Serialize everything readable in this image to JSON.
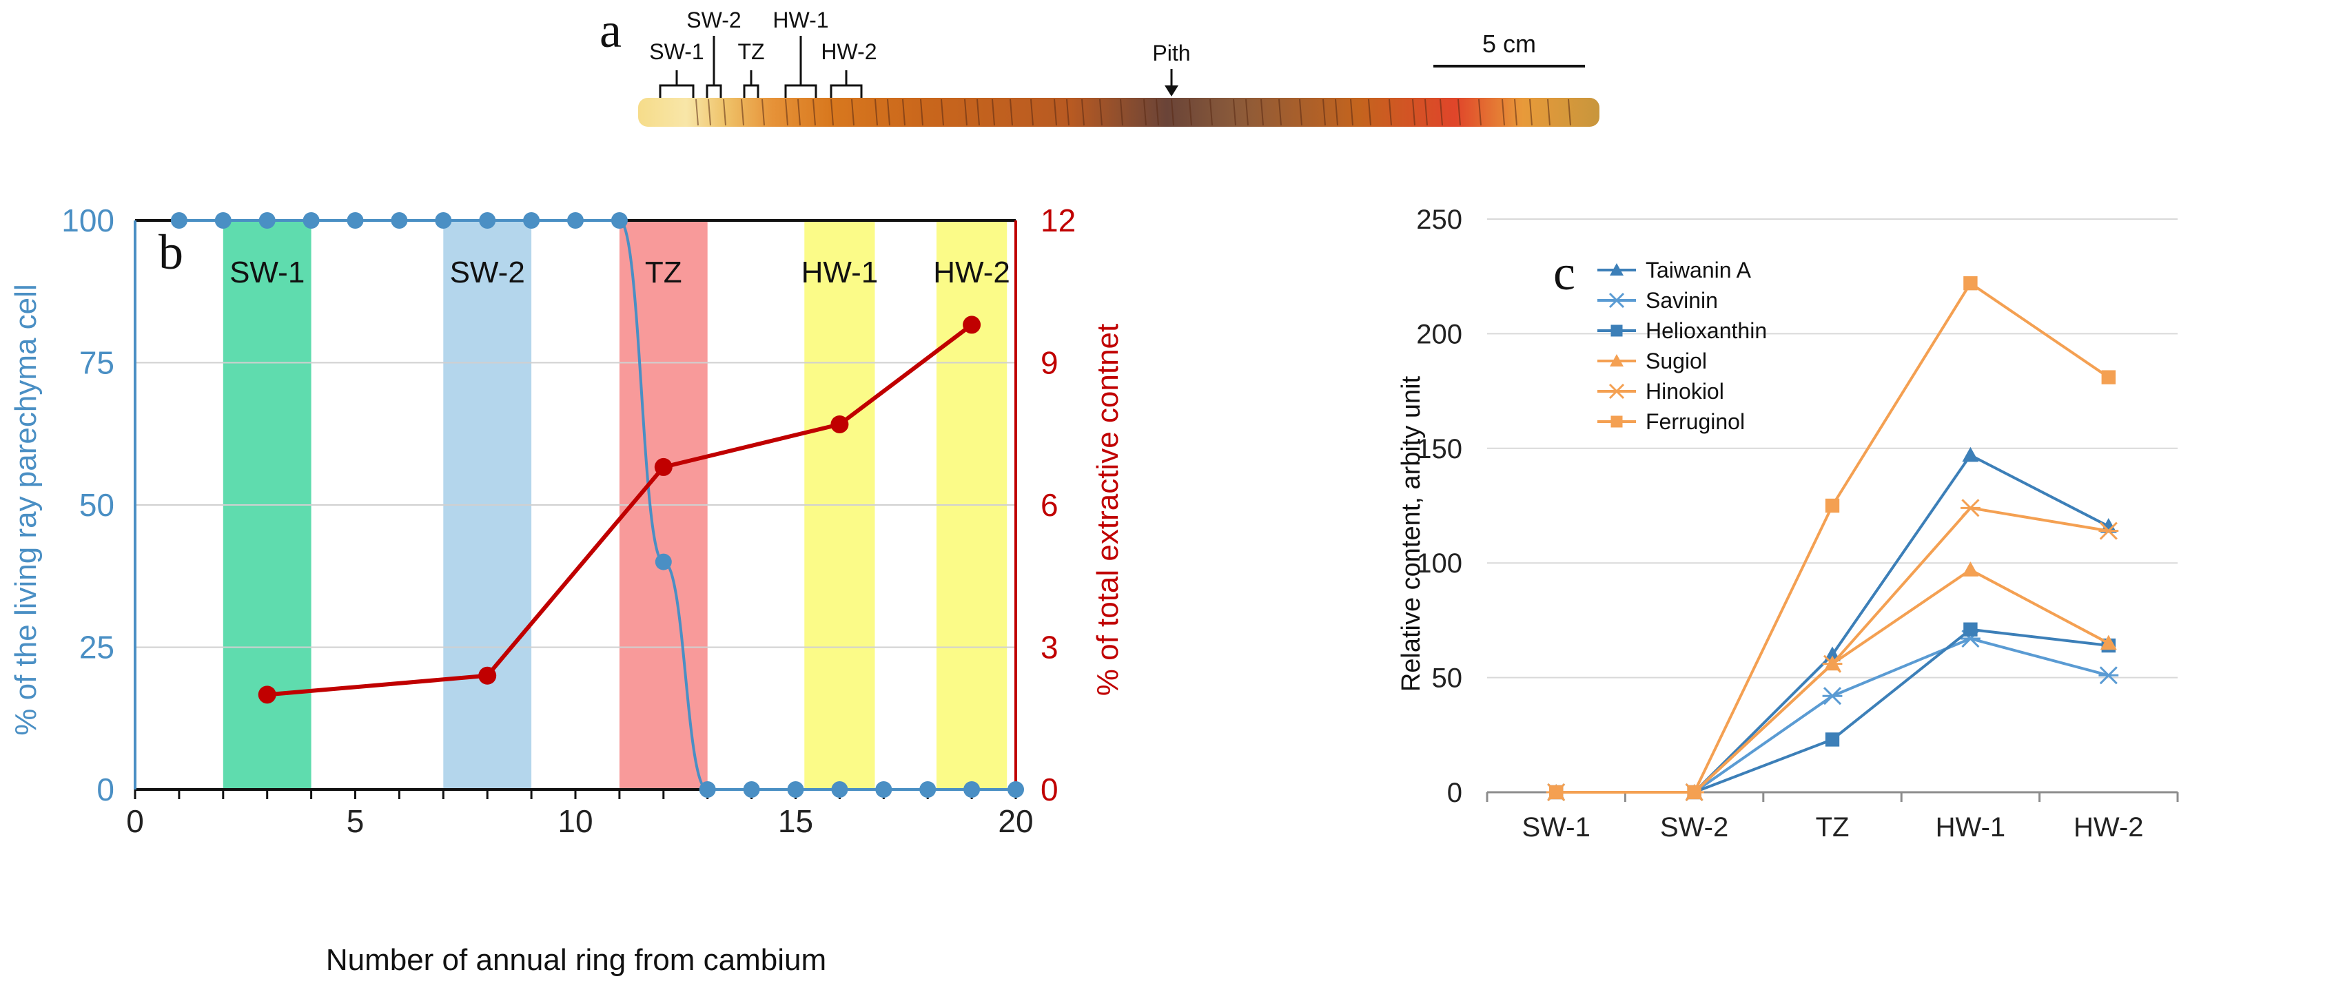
{
  "panel_a": {
    "letter": "a",
    "zone_labels": [
      "SW-1",
      "SW-2",
      "TZ",
      "HW-1",
      "HW-2"
    ],
    "pith_label": "Pith",
    "scale_label": "5 cm"
  },
  "panel_b": {
    "letter": "b",
    "zones": [
      {
        "label": "SW-1",
        "from": 2,
        "to": 4,
        "color": "#5fdcae"
      },
      {
        "label": "SW-2",
        "from": 7,
        "to": 9,
        "color": "#b4d6ec"
      },
      {
        "label": "TZ",
        "from": 11,
        "to": 13,
        "color": "#f89a9a"
      },
      {
        "label": "HW-1",
        "from": 15.2,
        "to": 16.8,
        "color": "#fbfb88"
      },
      {
        "label": "HW-2",
        "from": 18.2,
        "to": 19.8,
        "color": "#fbfb88"
      }
    ]
  },
  "panel_c": {
    "letter": "c"
  },
  "chart_data": [
    {
      "type": "line",
      "panel": "b",
      "title": "",
      "xlabel": "Number of annual  ring from cambium",
      "ylabel_left": "% of the living ray parechyma cell",
      "ylabel_right": "% of total extractive  contnet",
      "xlim": [
        0,
        20
      ],
      "ylim_left": [
        0,
        100
      ],
      "ylim_right": [
        0,
        12
      ],
      "x_ticks": [
        "0",
        "5",
        "10",
        "15",
        "20"
      ],
      "y_ticks_left": [
        "0",
        "25",
        "50",
        "75",
        "100"
      ],
      "y_ticks_right": [
        "0",
        "3",
        "6",
        "9",
        "12"
      ],
      "series": [
        {
          "name": "% of the living ray parechyma cell",
          "axis": "left",
          "color": "#4a8fc4",
          "x": [
            1,
            2,
            3,
            4,
            5,
            6,
            7,
            8,
            9,
            10,
            11,
            12,
            13,
            14,
            15,
            16,
            17,
            18,
            19,
            20
          ],
          "values": [
            100,
            100,
            100,
            100,
            100,
            100,
            100,
            100,
            100,
            100,
            100,
            40,
            0,
            0,
            0,
            0,
            0,
            0,
            0,
            0
          ]
        },
        {
          "name": "% of total extractive  contnet",
          "axis": "right",
          "color": "#c00000",
          "x": [
            3,
            8,
            12,
            16,
            19
          ],
          "values": [
            2.0,
            2.4,
            6.8,
            7.7,
            9.8
          ]
        }
      ]
    },
    {
      "type": "line",
      "panel": "c",
      "title": "",
      "xlabel": "",
      "ylabel": "Relative content, arbity unit",
      "ylim": [
        0,
        250
      ],
      "y_ticks": [
        "0",
        "50",
        "100",
        "150",
        "200",
        "250"
      ],
      "categories": [
        "SW-1",
        "SW-2",
        "TZ",
        "HW-1",
        "HW-2"
      ],
      "legend_position": "top-left",
      "series": [
        {
          "name": "Taiwanin A",
          "color": "#3c7fb8",
          "marker": "triangle",
          "values": [
            0,
            0,
            60,
            147,
            116
          ]
        },
        {
          "name": "Savinin",
          "color": "#5a9bd3",
          "marker": "asterisk",
          "values": [
            0,
            0,
            42,
            67,
            51
          ]
        },
        {
          "name": "Helioxanthin",
          "color": "#3c7fb8",
          "marker": "square",
          "values": [
            0,
            0,
            23,
            71,
            64
          ]
        },
        {
          "name": "Sugiol",
          "color": "#f4a052",
          "marker": "triangle",
          "values": [
            0,
            0,
            56,
            97,
            65
          ]
        },
        {
          "name": "Hinokiol",
          "color": "#f4a052",
          "marker": "asterisk",
          "values": [
            0,
            0,
            56,
            124,
            114
          ]
        },
        {
          "name": "Ferruginol",
          "color": "#f4a052",
          "marker": "square",
          "values": [
            0,
            0,
            125,
            222,
            181
          ]
        }
      ]
    }
  ]
}
